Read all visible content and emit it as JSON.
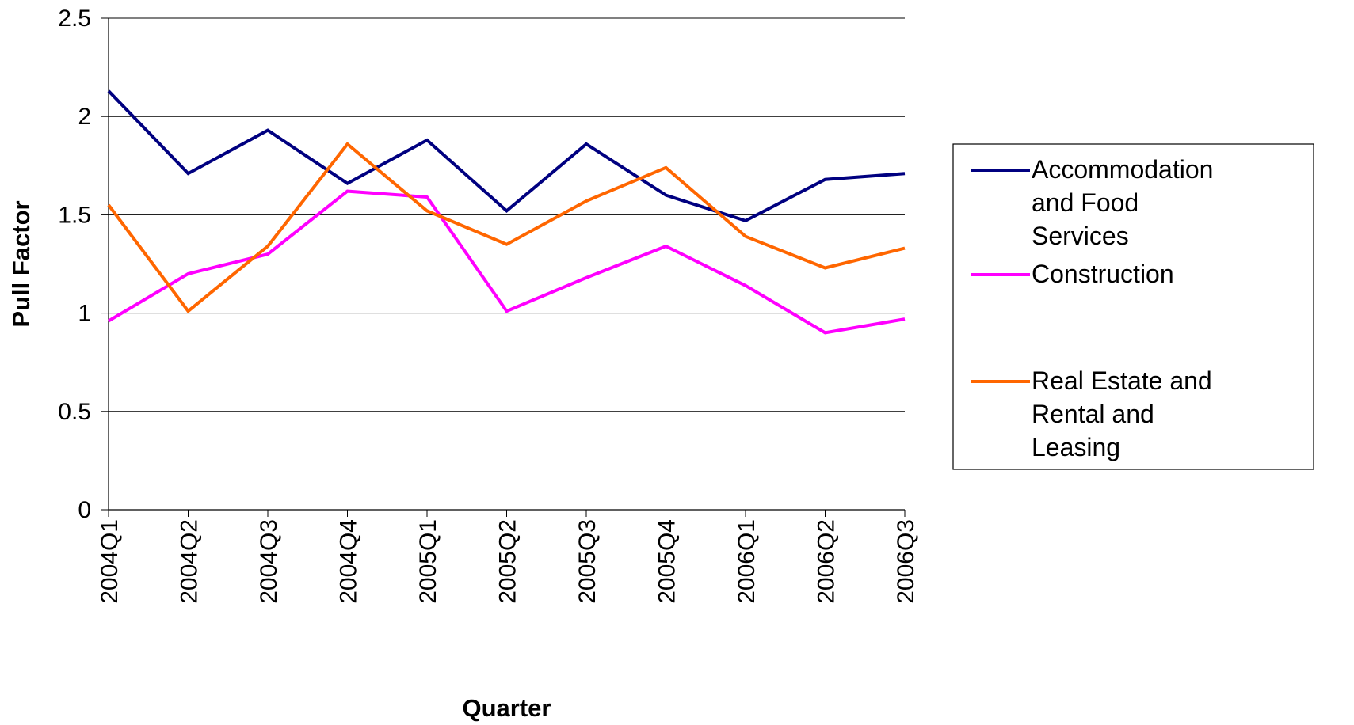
{
  "chart_data": {
    "type": "line",
    "title": "",
    "xlabel": "Quarter",
    "ylabel": "Pull Factor",
    "ylim": [
      0,
      2.5
    ],
    "yticks": [
      "0",
      "0.5",
      "1",
      "1.5",
      "2",
      "2.5"
    ],
    "grid": "horizontal",
    "legend_position": "right",
    "categories": [
      "2004Q1",
      "2004Q2",
      "2004Q3",
      "2004Q4",
      "2005Q1",
      "2005Q2",
      "2005Q3",
      "2005Q4",
      "2006Q1",
      "2006Q2",
      "2006Q3"
    ],
    "series": [
      {
        "name": "Accommodation and Food Services",
        "legend_lines": [
          "Accommodation",
          "and Food",
          "Services"
        ],
        "color": "#000080",
        "values": [
          2.13,
          1.71,
          1.93,
          1.66,
          1.88,
          1.52,
          1.86,
          1.6,
          1.47,
          1.68,
          1.71
        ]
      },
      {
        "name": "Construction",
        "legend_lines": [
          "Construction"
        ],
        "color": "#FF00FF",
        "values": [
          0.96,
          1.2,
          1.3,
          1.62,
          1.59,
          1.01,
          1.18,
          1.34,
          1.14,
          0.9,
          0.97
        ]
      },
      {
        "name": "Real Estate and Rental and Leasing",
        "legend_lines": [
          "Real Estate and",
          "Rental and",
          "Leasing"
        ],
        "color": "#FF6600",
        "values": [
          1.55,
          1.01,
          1.34,
          1.86,
          1.52,
          1.35,
          1.57,
          1.74,
          1.39,
          1.23,
          1.33
        ]
      }
    ]
  }
}
